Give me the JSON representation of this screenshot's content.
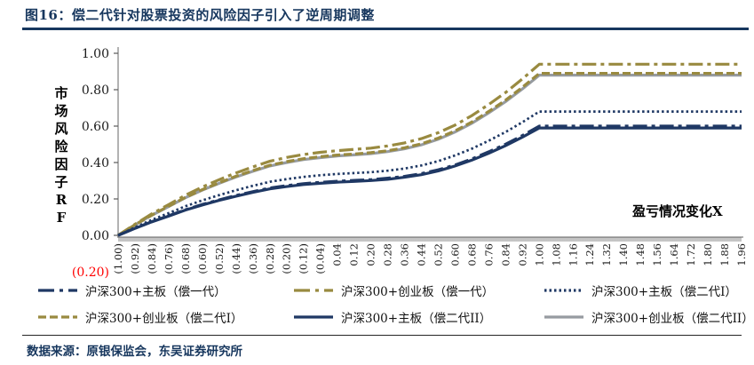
{
  "title": "图16：偿二代针对股票投资的风险因子引入了逆周期调整",
  "source": "数据来源：原银保监会，东吴证券研究所",
  "colors": {
    "navy": "#1F3864",
    "olive": "#998A40",
    "gray": "#969BA1",
    "title_navy": "#17375E",
    "negative_red": "#FF0000",
    "axis": "#808080",
    "tick": "#595959",
    "label_text": "#1a1a1a"
  },
  "chart_data": {
    "type": "line",
    "title": "偿二代针对股票投资的风险因子引入了逆周期调整",
    "xlabel": "盈亏情况变化X",
    "ylabel": "市场风险因子RF",
    "xlim": [
      -1.0,
      1.96
    ],
    "ylim": [
      -0.2,
      1.0
    ],
    "grid": false,
    "legend_position": "bottom",
    "y_ticks": [
      {
        "value": 1.0,
        "label": "1.00"
      },
      {
        "value": 0.8,
        "label": "0.80"
      },
      {
        "value": 0.6,
        "label": "0.60"
      },
      {
        "value": 0.4,
        "label": "0.40"
      },
      {
        "value": 0.2,
        "label": "0.20"
      },
      {
        "value": 0.0,
        "label": "0.00"
      },
      {
        "value": -0.2,
        "label": "(0.20)"
      }
    ],
    "x": [
      -1.0,
      -0.92,
      -0.84,
      -0.76,
      -0.68,
      -0.6,
      -0.52,
      -0.44,
      -0.36,
      -0.28,
      -0.2,
      -0.12,
      -0.04,
      0.04,
      0.12,
      0.2,
      0.28,
      0.36,
      0.44,
      0.52,
      0.6,
      0.68,
      0.76,
      0.84,
      0.92,
      1.0,
      1.08,
      1.16,
      1.24,
      1.32,
      1.4,
      1.48,
      1.56,
      1.64,
      1.72,
      1.8,
      1.88,
      1.96
    ],
    "x_tick_labels": [
      "(1.00)",
      "(0.92)",
      "(0.84)",
      "(0.76)",
      "(0.68)",
      "(0.60)",
      "(0.52)",
      "(0.44)",
      "(0.36)",
      "(0.28)",
      "(0.20)",
      "(0.12)",
      "(0.04)",
      "0.04",
      "0.12",
      "0.20",
      "0.28",
      "0.36",
      "0.44",
      "0.52",
      "0.60",
      "0.68",
      "0.76",
      "0.84",
      "0.92",
      "1.00",
      "1.08",
      "1.16",
      "1.24",
      "1.32",
      "1.40",
      "1.48",
      "1.56",
      "1.64",
      "1.72",
      "1.80",
      "1.88",
      "1.96"
    ],
    "series": [
      {
        "name": "沪深300+主板（偿一代）",
        "color": "#1F3864",
        "style": "dashdot",
        "values": [
          0,
          0.039,
          0.075,
          0.108,
          0.141,
          0.17,
          0.195,
          0.219,
          0.24,
          0.26,
          0.273,
          0.284,
          0.291,
          0.297,
          0.302,
          0.306,
          0.314,
          0.324,
          0.339,
          0.36,
          0.387,
          0.42,
          0.459,
          0.501,
          0.549,
          0.6,
          0.6,
          0.6,
          0.6,
          0.6,
          0.6,
          0.6,
          0.6,
          0.6,
          0.6,
          0.6,
          0.6,
          0.6
        ]
      },
      {
        "name": "沪深300+创业板（偿一代）",
        "color": "#998A40",
        "style": "dashdot",
        "values": [
          0,
          0.061,
          0.118,
          0.169,
          0.221,
          0.266,
          0.306,
          0.343,
          0.376,
          0.407,
          0.428,
          0.444,
          0.456,
          0.465,
          0.472,
          0.479,
          0.491,
          0.508,
          0.531,
          0.564,
          0.606,
          0.658,
          0.719,
          0.785,
          0.86,
          0.94,
          0.94,
          0.94,
          0.94,
          0.94,
          0.94,
          0.94,
          0.94,
          0.94,
          0.94,
          0.94,
          0.94,
          0.94
        ]
      },
      {
        "name": "沪深300+主板（偿二代I）",
        "color": "#1F3864",
        "style": "dotted",
        "values": [
          0,
          0.044,
          0.085,
          0.122,
          0.16,
          0.192,
          0.221,
          0.248,
          0.272,
          0.294,
          0.309,
          0.321,
          0.33,
          0.337,
          0.342,
          0.347,
          0.355,
          0.367,
          0.384,
          0.408,
          0.439,
          0.476,
          0.52,
          0.568,
          0.622,
          0.68,
          0.68,
          0.68,
          0.68,
          0.68,
          0.68,
          0.68,
          0.68,
          0.68,
          0.68,
          0.68,
          0.68,
          0.68
        ]
      },
      {
        "name": "沪深300+创业板（偿二代I）",
        "color": "#998A40",
        "style": "dashed",
        "values": [
          0,
          0.058,
          0.111,
          0.16,
          0.209,
          0.251,
          0.289,
          0.325,
          0.356,
          0.385,
          0.405,
          0.421,
          0.432,
          0.441,
          0.447,
          0.454,
          0.465,
          0.481,
          0.503,
          0.534,
          0.574,
          0.623,
          0.681,
          0.743,
          0.814,
          0.89,
          0.89,
          0.89,
          0.89,
          0.89,
          0.89,
          0.89,
          0.89,
          0.89,
          0.89,
          0.89,
          0.89,
          0.89
        ]
      },
      {
        "name": "沪深300+主板（偿二代II）",
        "color": "#1F3864",
        "style": "solid",
        "values": [
          0,
          0.038,
          0.074,
          0.106,
          0.139,
          0.167,
          0.192,
          0.215,
          0.236,
          0.255,
          0.268,
          0.279,
          0.286,
          0.292,
          0.296,
          0.301,
          0.308,
          0.319,
          0.333,
          0.354,
          0.381,
          0.413,
          0.451,
          0.493,
          0.54,
          0.59,
          0.59,
          0.59,
          0.59,
          0.59,
          0.59,
          0.59,
          0.59,
          0.59,
          0.59,
          0.59,
          0.59,
          0.59
        ]
      },
      {
        "name": "沪深300+创业板（偿二代II）",
        "color": "#969BA1",
        "style": "solid",
        "values": [
          0,
          0.057,
          0.11,
          0.158,
          0.207,
          0.249,
          0.286,
          0.321,
          0.352,
          0.381,
          0.4,
          0.416,
          0.427,
          0.436,
          0.442,
          0.449,
          0.46,
          0.475,
          0.497,
          0.528,
          0.568,
          0.616,
          0.673,
          0.735,
          0.805,
          0.88,
          0.88,
          0.88,
          0.88,
          0.88,
          0.88,
          0.88,
          0.88,
          0.88,
          0.88,
          0.88,
          0.88,
          0.88
        ]
      }
    ]
  }
}
